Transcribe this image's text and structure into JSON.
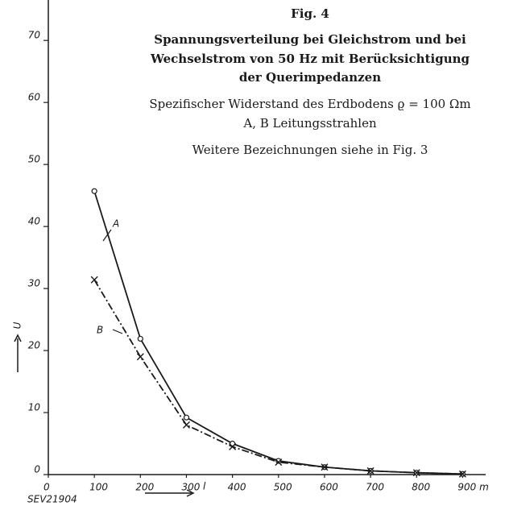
{
  "chart_data": {
    "type": "line",
    "title": "Fig. 4",
    "title_lines": [
      "Spannungsverteilung bei Gleichstrom und bei",
      "Wechselstrom von 50 Hz mit Berücksichtigung",
      "der Querimpedanzen"
    ],
    "subtitle_lines": [
      "Spezifischer Widerstand des Erdbodens ϱ = 100 Ωm",
      "A, B Leitungsstrahlen",
      "Weitere Bezeichnungen siehe in Fig. 3"
    ],
    "x_label": "l",
    "y_label": "U",
    "source": "SEV21904",
    "x": [
      100,
      200,
      300,
      400,
      500,
      600,
      700,
      800,
      900
    ],
    "series": [
      {
        "name": "A",
        "color": "#1a1a1a",
        "marker": "circle",
        "dash": "solid",
        "values": [
          45.7,
          21.9,
          9.2,
          5,
          2.2,
          1.2,
          0.6,
          0.3,
          0.1
        ]
      },
      {
        "name": "B",
        "color": "#1a1a1a",
        "marker": "cross",
        "dash": "dashdot",
        "values": [
          31.4,
          19,
          8,
          4.5,
          2,
          1.2,
          0.6,
          0.3,
          0.1
        ]
      }
    ],
    "xlim": [
      0,
      950
    ],
    "ylim": [
      0,
      76
    ],
    "xticks": [
      0,
      100,
      200,
      300,
      400,
      500,
      600,
      700,
      800,
      {
        "value": 900,
        "label": "900 m"
      }
    ],
    "yticks": [
      0,
      10,
      20,
      30,
      40,
      50,
      60,
      70
    ]
  }
}
